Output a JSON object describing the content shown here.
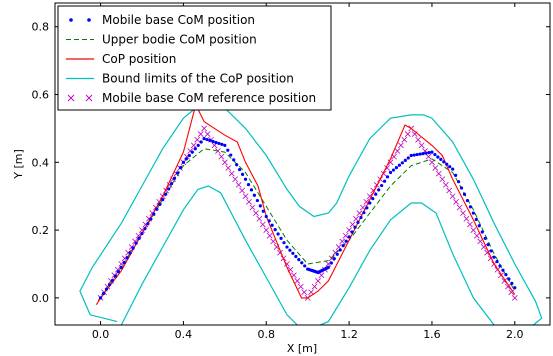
{
  "chart_data": {
    "type": "line",
    "xlabel": "X [m]",
    "ylabel": "Y [m]",
    "xlim": [
      -0.22,
      2.17
    ],
    "ylim": [
      -0.08,
      0.87
    ],
    "xticks": [
      0.0,
      0.4,
      0.8,
      1.2,
      1.6,
      2.0
    ],
    "xtick_labels": [
      "0.0",
      "0.4",
      "0.8",
      "1.2",
      "1.6",
      "2.0"
    ],
    "yticks": [
      0.0,
      0.2,
      0.4,
      0.6,
      0.8
    ],
    "ytick_labels": [
      "0.0",
      "0.2",
      "0.4",
      "0.6",
      "0.8"
    ],
    "grid": false,
    "legend_position": "top-left",
    "series": [
      {
        "name": "Mobile base CoM position",
        "color": "#0000ff",
        "style": "dots",
        "x": [
          0.0,
          0.1,
          0.2,
          0.3,
          0.4,
          0.5,
          0.6,
          0.7,
          0.8,
          0.9,
          1.0,
          1.05,
          1.1,
          1.2,
          1.3,
          1.4,
          1.5,
          1.6,
          1.7,
          1.8,
          1.9,
          2.0
        ],
        "y": [
          0.0,
          0.09,
          0.19,
          0.29,
          0.4,
          0.47,
          0.45,
          0.35,
          0.24,
          0.15,
          0.085,
          0.075,
          0.09,
          0.18,
          0.28,
          0.37,
          0.42,
          0.43,
          0.38,
          0.25,
          0.12,
          0.03
        ]
      },
      {
        "name": "Upper bodie CoM position",
        "color": "#008000",
        "style": "dashed",
        "x": [
          0.0,
          0.1,
          0.2,
          0.3,
          0.4,
          0.5,
          0.6,
          0.7,
          0.8,
          0.9,
          1.0,
          1.1,
          1.2,
          1.3,
          1.4,
          1.5,
          1.6,
          1.7,
          1.8,
          1.9,
          2.0
        ],
        "y": [
          0.0,
          0.09,
          0.19,
          0.29,
          0.39,
          0.44,
          0.43,
          0.37,
          0.27,
          0.17,
          0.1,
          0.11,
          0.17,
          0.25,
          0.33,
          0.39,
          0.41,
          0.37,
          0.26,
          0.13,
          0.02
        ]
      },
      {
        "name": "CoP position",
        "color": "#ff0000",
        "style": "solid",
        "x": [
          -0.02,
          0.0,
          0.1,
          0.2,
          0.3,
          0.4,
          0.46,
          0.5,
          0.55,
          0.6,
          0.66,
          0.7,
          0.76,
          0.8,
          0.9,
          0.97,
          1.0,
          1.05,
          1.1,
          1.2,
          1.3,
          1.4,
          1.47,
          1.5,
          1.6,
          1.65,
          1.7,
          1.8,
          1.9,
          2.0
        ],
        "y": [
          -0.02,
          0.0,
          0.08,
          0.19,
          0.3,
          0.43,
          0.57,
          0.52,
          0.5,
          0.48,
          0.46,
          0.4,
          0.33,
          0.24,
          0.09,
          0.0,
          0.0,
          0.02,
          0.05,
          0.17,
          0.29,
          0.41,
          0.51,
          0.5,
          0.45,
          0.42,
          0.35,
          0.23,
          0.1,
          0.01
        ]
      },
      {
        "name": "Bound limits of the CoP position",
        "color": "#00bfbf",
        "style": "solid",
        "outer": {
          "x": [
            0.08,
            -0.05,
            -0.1,
            -0.04,
            0.1,
            0.2,
            0.3,
            0.4,
            0.5,
            0.6,
            0.7,
            0.8,
            0.9,
            0.96,
            1.03,
            1.1,
            1.14,
            1.2,
            1.3,
            1.4,
            1.5,
            1.56,
            1.6,
            1.7,
            1.8,
            1.9,
            2.0,
            2.1,
            2.13,
            2.09,
            1.95
          ],
          "y": [
            -0.07,
            -0.05,
            0.02,
            0.09,
            0.22,
            0.33,
            0.44,
            0.53,
            0.58,
            0.56,
            0.5,
            0.42,
            0.32,
            0.27,
            0.24,
            0.25,
            0.28,
            0.36,
            0.47,
            0.53,
            0.54,
            0.54,
            0.53,
            0.46,
            0.35,
            0.22,
            0.1,
            -0.01,
            -0.06,
            -0.08,
            -0.08
          ]
        },
        "inner": {
          "x": [
            0.1,
            0.2,
            0.3,
            0.4,
            0.47,
            0.52,
            0.58,
            0.7,
            0.8,
            0.9,
            0.95,
            1.02,
            1.1,
            1.2,
            1.3,
            1.4,
            1.5,
            1.55,
            1.62,
            1.7,
            1.8,
            1.9
          ],
          "y": [
            -0.08,
            0.04,
            0.15,
            0.26,
            0.32,
            0.33,
            0.31,
            0.17,
            0.06,
            -0.05,
            -0.08,
            -0.09,
            -0.07,
            0.03,
            0.14,
            0.23,
            0.28,
            0.28,
            0.25,
            0.13,
            0.0,
            -0.08
          ]
        }
      },
      {
        "name": "Mobile base CoM reference position",
        "color": "#bf00bf",
        "style": "x-markers",
        "x": [
          0.0,
          0.1,
          0.2,
          0.3,
          0.4,
          0.5,
          0.6,
          0.7,
          0.8,
          0.9,
          1.0,
          1.1,
          1.2,
          1.3,
          1.4,
          1.5,
          1.6,
          1.7,
          1.8,
          1.9,
          2.0
        ],
        "y": [
          0.0,
          0.1,
          0.2,
          0.3,
          0.4,
          0.5,
          0.4,
          0.3,
          0.2,
          0.1,
          0.0,
          0.1,
          0.2,
          0.3,
          0.4,
          0.5,
          0.4,
          0.3,
          0.2,
          0.1,
          0.0
        ]
      }
    ]
  }
}
